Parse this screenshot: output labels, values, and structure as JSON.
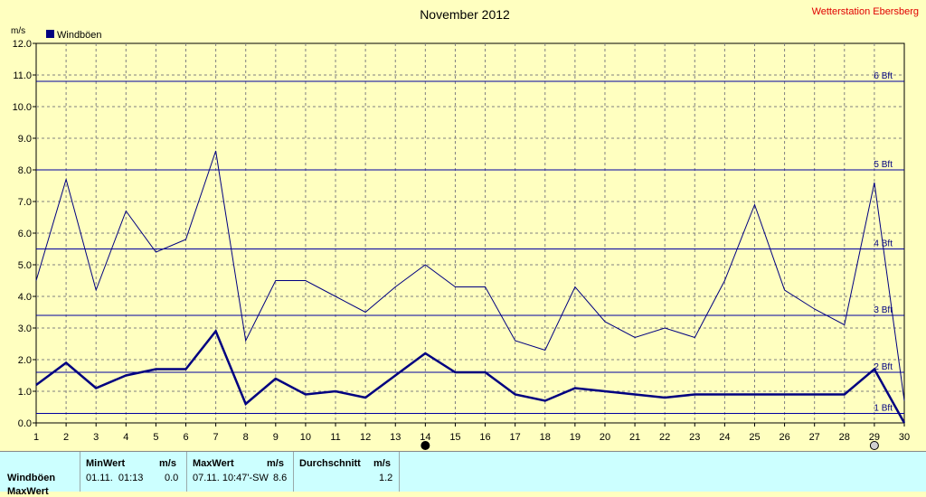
{
  "header": {
    "title": "November 2012",
    "station": "Wetterstation Ebersberg",
    "unit": "m/s"
  },
  "legend": {
    "label": "Windböen",
    "color": "#000080"
  },
  "colors": {
    "background": "#FFFFC0",
    "plot": "#FFFFC0",
    "series": "#000080",
    "bft": "#0000A0",
    "table": "#CCFFFF",
    "station": "#E00000"
  },
  "chart_data": {
    "type": "line",
    "title": "November 2012",
    "ylabel": "m/s",
    "xlim": [
      1,
      30
    ],
    "ylim": [
      0,
      12
    ],
    "yticks": [
      "0.0",
      "1.0",
      "2.0",
      "3.0",
      "4.0",
      "5.0",
      "6.0",
      "7.0",
      "8.0",
      "9.0",
      "10.0",
      "11.0",
      "12.0"
    ],
    "xticks": [
      1,
      2,
      3,
      4,
      5,
      6,
      7,
      8,
      9,
      10,
      11,
      12,
      13,
      14,
      15,
      16,
      17,
      18,
      19,
      20,
      21,
      22,
      23,
      24,
      25,
      26,
      27,
      28,
      29,
      30
    ],
    "grid": true,
    "legend_position": "top-left",
    "series": [
      {
        "name": "Windböen",
        "style": "thin",
        "x": [
          1,
          2,
          3,
          4,
          5,
          6,
          7,
          8,
          9,
          10,
          11,
          12,
          13,
          14,
          15,
          16,
          17,
          18,
          19,
          20,
          21,
          22,
          23,
          24,
          25,
          26,
          27,
          28,
          29,
          30
        ],
        "values": [
          4.5,
          7.7,
          4.2,
          6.7,
          5.4,
          5.8,
          8.6,
          2.6,
          4.5,
          4.5,
          4.0,
          3.5,
          4.3,
          5.0,
          4.3,
          4.3,
          2.6,
          2.3,
          4.3,
          3.2,
          2.7,
          3.0,
          2.7,
          4.5,
          6.9,
          4.2,
          3.6,
          3.1,
          7.6,
          0.7
        ]
      },
      {
        "style": "thick",
        "x": [
          1,
          2,
          3,
          4,
          5,
          6,
          7,
          8,
          9,
          10,
          11,
          12,
          13,
          14,
          15,
          16,
          17,
          18,
          19,
          20,
          21,
          22,
          23,
          24,
          25,
          26,
          27,
          28,
          29,
          30
        ],
        "values": [
          1.2,
          1.9,
          1.1,
          1.5,
          1.7,
          1.7,
          2.9,
          0.6,
          1.4,
          0.9,
          1.0,
          0.8,
          1.5,
          2.2,
          1.6,
          1.6,
          0.9,
          0.7,
          1.1,
          1.0,
          0.9,
          0.8,
          0.9,
          0.9,
          0.9,
          0.9,
          0.9,
          0.9,
          1.7,
          0.0
        ]
      }
    ],
    "reference_lines": [
      {
        "value": 0.3,
        "label": "1 Bft"
      },
      {
        "value": 1.6,
        "label": "2 Bft"
      },
      {
        "value": 3.4,
        "label": "3 Bft"
      },
      {
        "value": 5.5,
        "label": "4 Bft"
      },
      {
        "value": 8.0,
        "label": "5 Bft"
      },
      {
        "value": 10.8,
        "label": "6 Bft"
      }
    ],
    "markers": [
      {
        "x": 14,
        "icon": "new-moon-icon"
      },
      {
        "x": 29,
        "icon": "full-moon-icon"
      }
    ]
  },
  "stats": {
    "row_label": "Windböen",
    "row2_label": "MaxWert",
    "min": {
      "header": "MinWert",
      "unit": "m/s",
      "time": "01.11.  01:13",
      "value": "0.0"
    },
    "max": {
      "header": "MaxWert",
      "unit": "m/s",
      "time": "07.11.  10:47'-SW",
      "value": "8.6"
    },
    "avg": {
      "header": "Durchschnitt",
      "unit": "m/s",
      "value": "1.2"
    }
  }
}
